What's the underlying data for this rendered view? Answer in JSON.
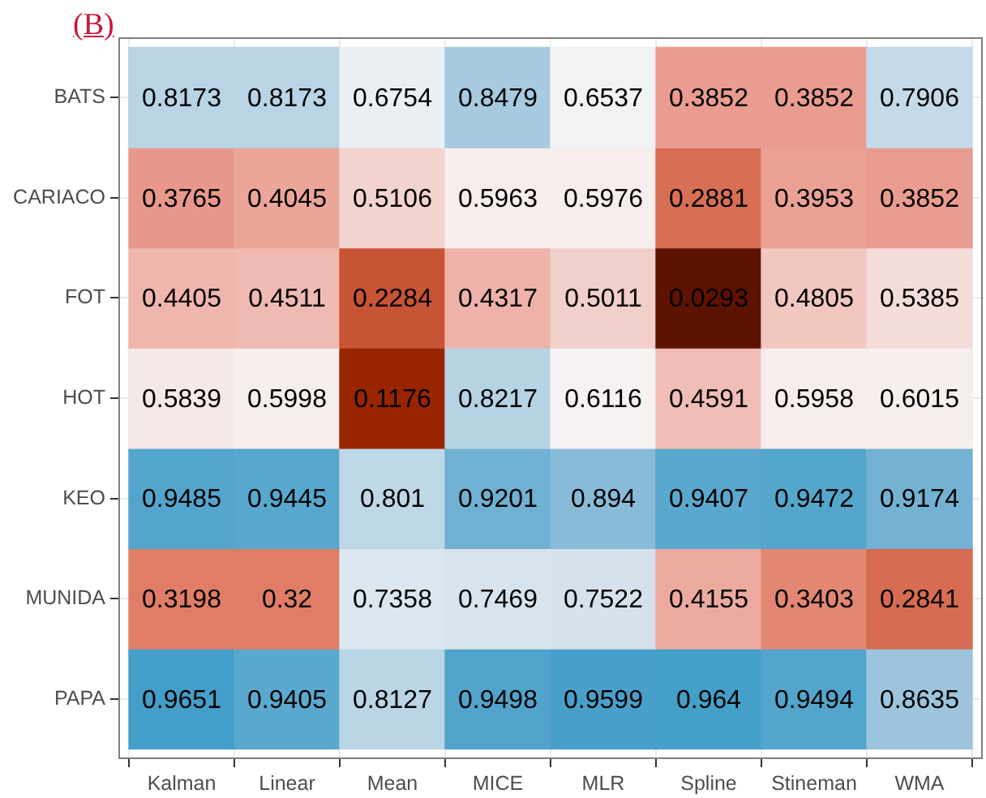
{
  "chart_data": {
    "type": "heatmap",
    "title": "(B)",
    "categories": [
      "Kalman",
      "Linear",
      "Mean",
      "MICE",
      "MLR",
      "Spline",
      "Stineman",
      "WMA"
    ],
    "y_categories": [
      "BATS",
      "CARIACO",
      "FOT",
      "HOT",
      "KEO",
      "MUNIDA",
      "PAPA"
    ],
    "cells": [
      [
        0.8173,
        0.8173,
        0.6754,
        0.8479,
        0.6537,
        0.3852,
        0.3852,
        0.7906
      ],
      [
        0.3765,
        0.4045,
        0.5106,
        0.5963,
        0.5976,
        0.2881,
        0.3953,
        0.3852
      ],
      [
        0.4405,
        0.4511,
        0.2284,
        0.4317,
        0.5011,
        0.0293,
        0.4805,
        0.5385
      ],
      [
        0.5839,
        0.5998,
        0.1176,
        0.8217,
        0.6116,
        0.4591,
        0.5958,
        0.6015
      ],
      [
        0.9485,
        0.9445,
        0.801,
        0.9201,
        0.894,
        0.9407,
        0.9472,
        0.9174
      ],
      [
        0.3198,
        0.32,
        0.7358,
        0.7469,
        0.7522,
        0.4155,
        0.3403,
        0.2841
      ],
      [
        0.9651,
        0.9405,
        0.8127,
        0.9498,
        0.9599,
        0.964,
        0.9494,
        0.8635
      ]
    ],
    "data_labels": true,
    "grid": true
  }
}
